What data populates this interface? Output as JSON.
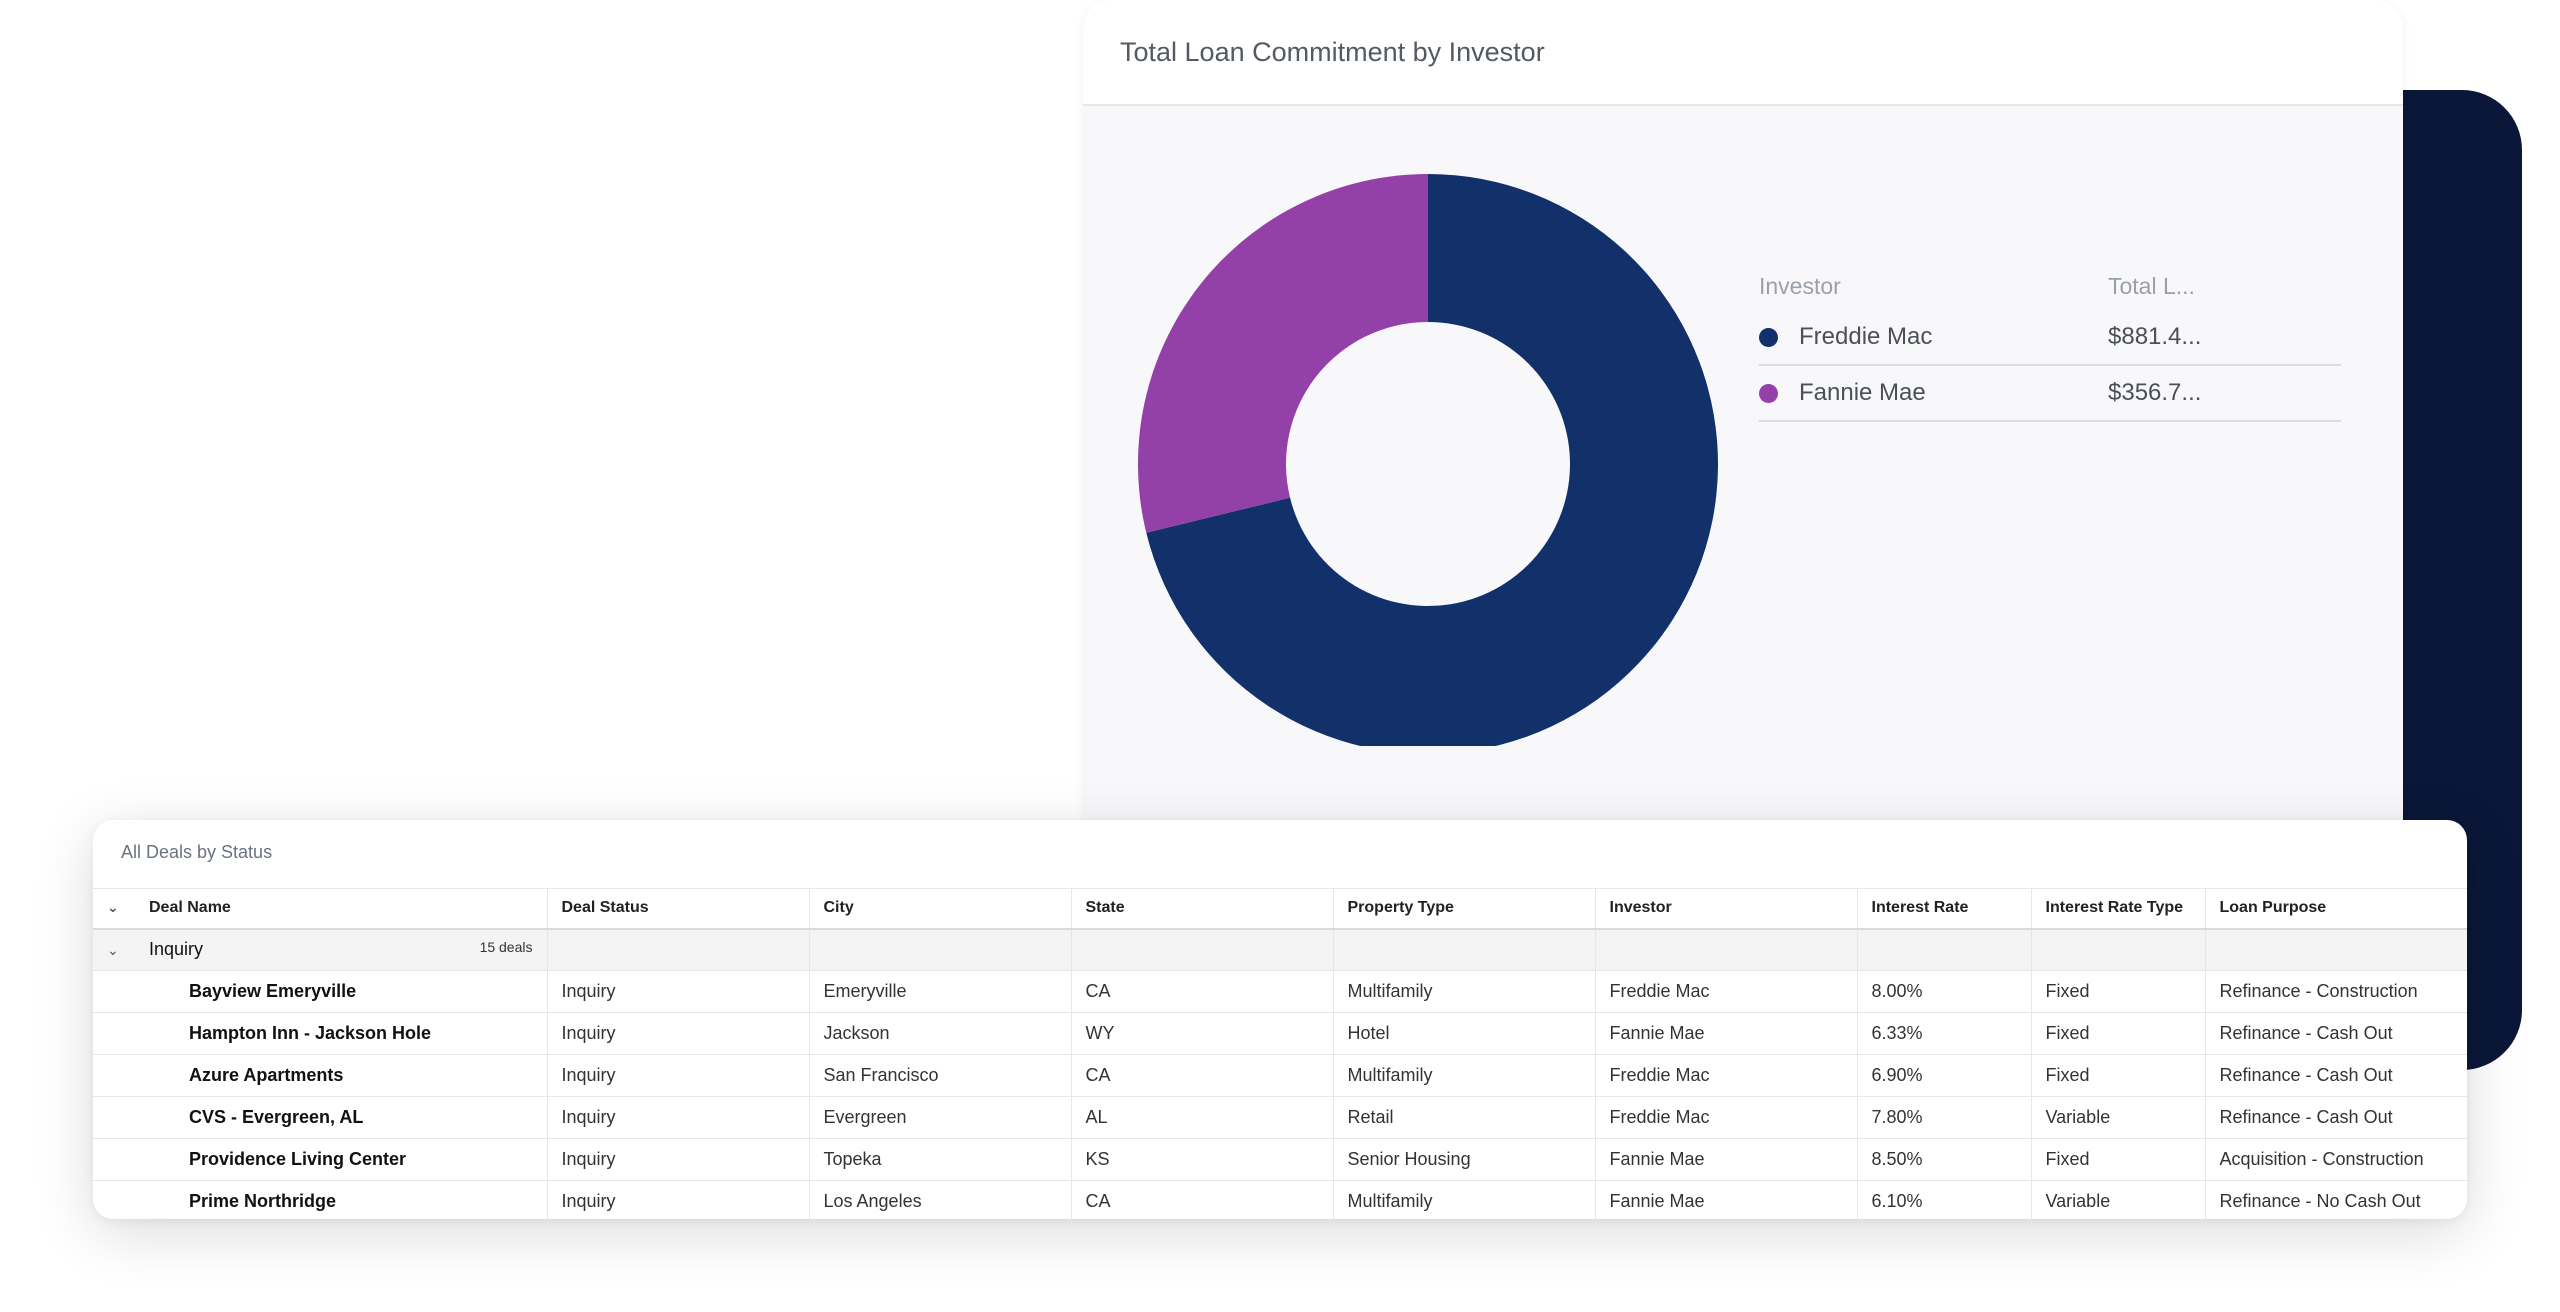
{
  "chart_card": {
    "title": "Total Loan Commitment by Investor",
    "legend_headers": {
      "investor": "Investor",
      "total": "Total L..."
    },
    "legend": [
      {
        "name": "Freddie Mac",
        "total": "$881.4...",
        "color": "#12306a"
      },
      {
        "name": "Fannie Mae",
        "total": "$356.7...",
        "color": "#9340a9"
      }
    ]
  },
  "chart_data": {
    "type": "pie",
    "title": "Total Loan Commitment by Investor",
    "categories": [
      "Freddie Mac",
      "Fannie Mae"
    ],
    "values": [
      881.4,
      356.7
    ],
    "colors": [
      "#12306a",
      "#9340a9"
    ],
    "legend_position": "right",
    "donut": true
  },
  "table": {
    "title": "All Deals by Status",
    "columns": [
      "Deal Name",
      "Deal Status",
      "City",
      "State",
      "Property Type",
      "Investor",
      "Interest Rate",
      "Interest Rate Type",
      "Loan Purpose"
    ],
    "group": {
      "label": "Inquiry",
      "count": "15 deals"
    },
    "rows": [
      [
        "Bayview Emeryville",
        "Inquiry",
        "Emeryville",
        "CA",
        "Multifamily",
        "Freddie Mac",
        "8.00%",
        "Fixed",
        "Refinance - Construction"
      ],
      [
        "Hampton Inn - Jackson Hole",
        "Inquiry",
        "Jackson",
        "WY",
        "Hotel",
        "Fannie Mae",
        "6.33%",
        "Fixed",
        "Refinance - Cash Out"
      ],
      [
        "Azure Apartments",
        "Inquiry",
        "San Francisco",
        "CA",
        "Multifamily",
        "Freddie Mac",
        "6.90%",
        "Fixed",
        "Refinance - Cash Out"
      ],
      [
        "CVS - Evergreen, AL",
        "Inquiry",
        "Evergreen",
        "AL",
        "Retail",
        "Freddie Mac",
        "7.80%",
        "Variable",
        "Refinance - Cash Out"
      ],
      [
        "Providence Living Center",
        "Inquiry",
        "Topeka",
        "KS",
        "Senior Housing",
        "Fannie Mae",
        "8.50%",
        "Fixed",
        "Acquisition - Construction"
      ],
      [
        "Prime Northridge",
        "Inquiry",
        "Los Angeles",
        "CA",
        "Multifamily",
        "Fannie Mae",
        "6.10%",
        "Variable",
        "Refinance - No Cash Out"
      ]
    ]
  }
}
